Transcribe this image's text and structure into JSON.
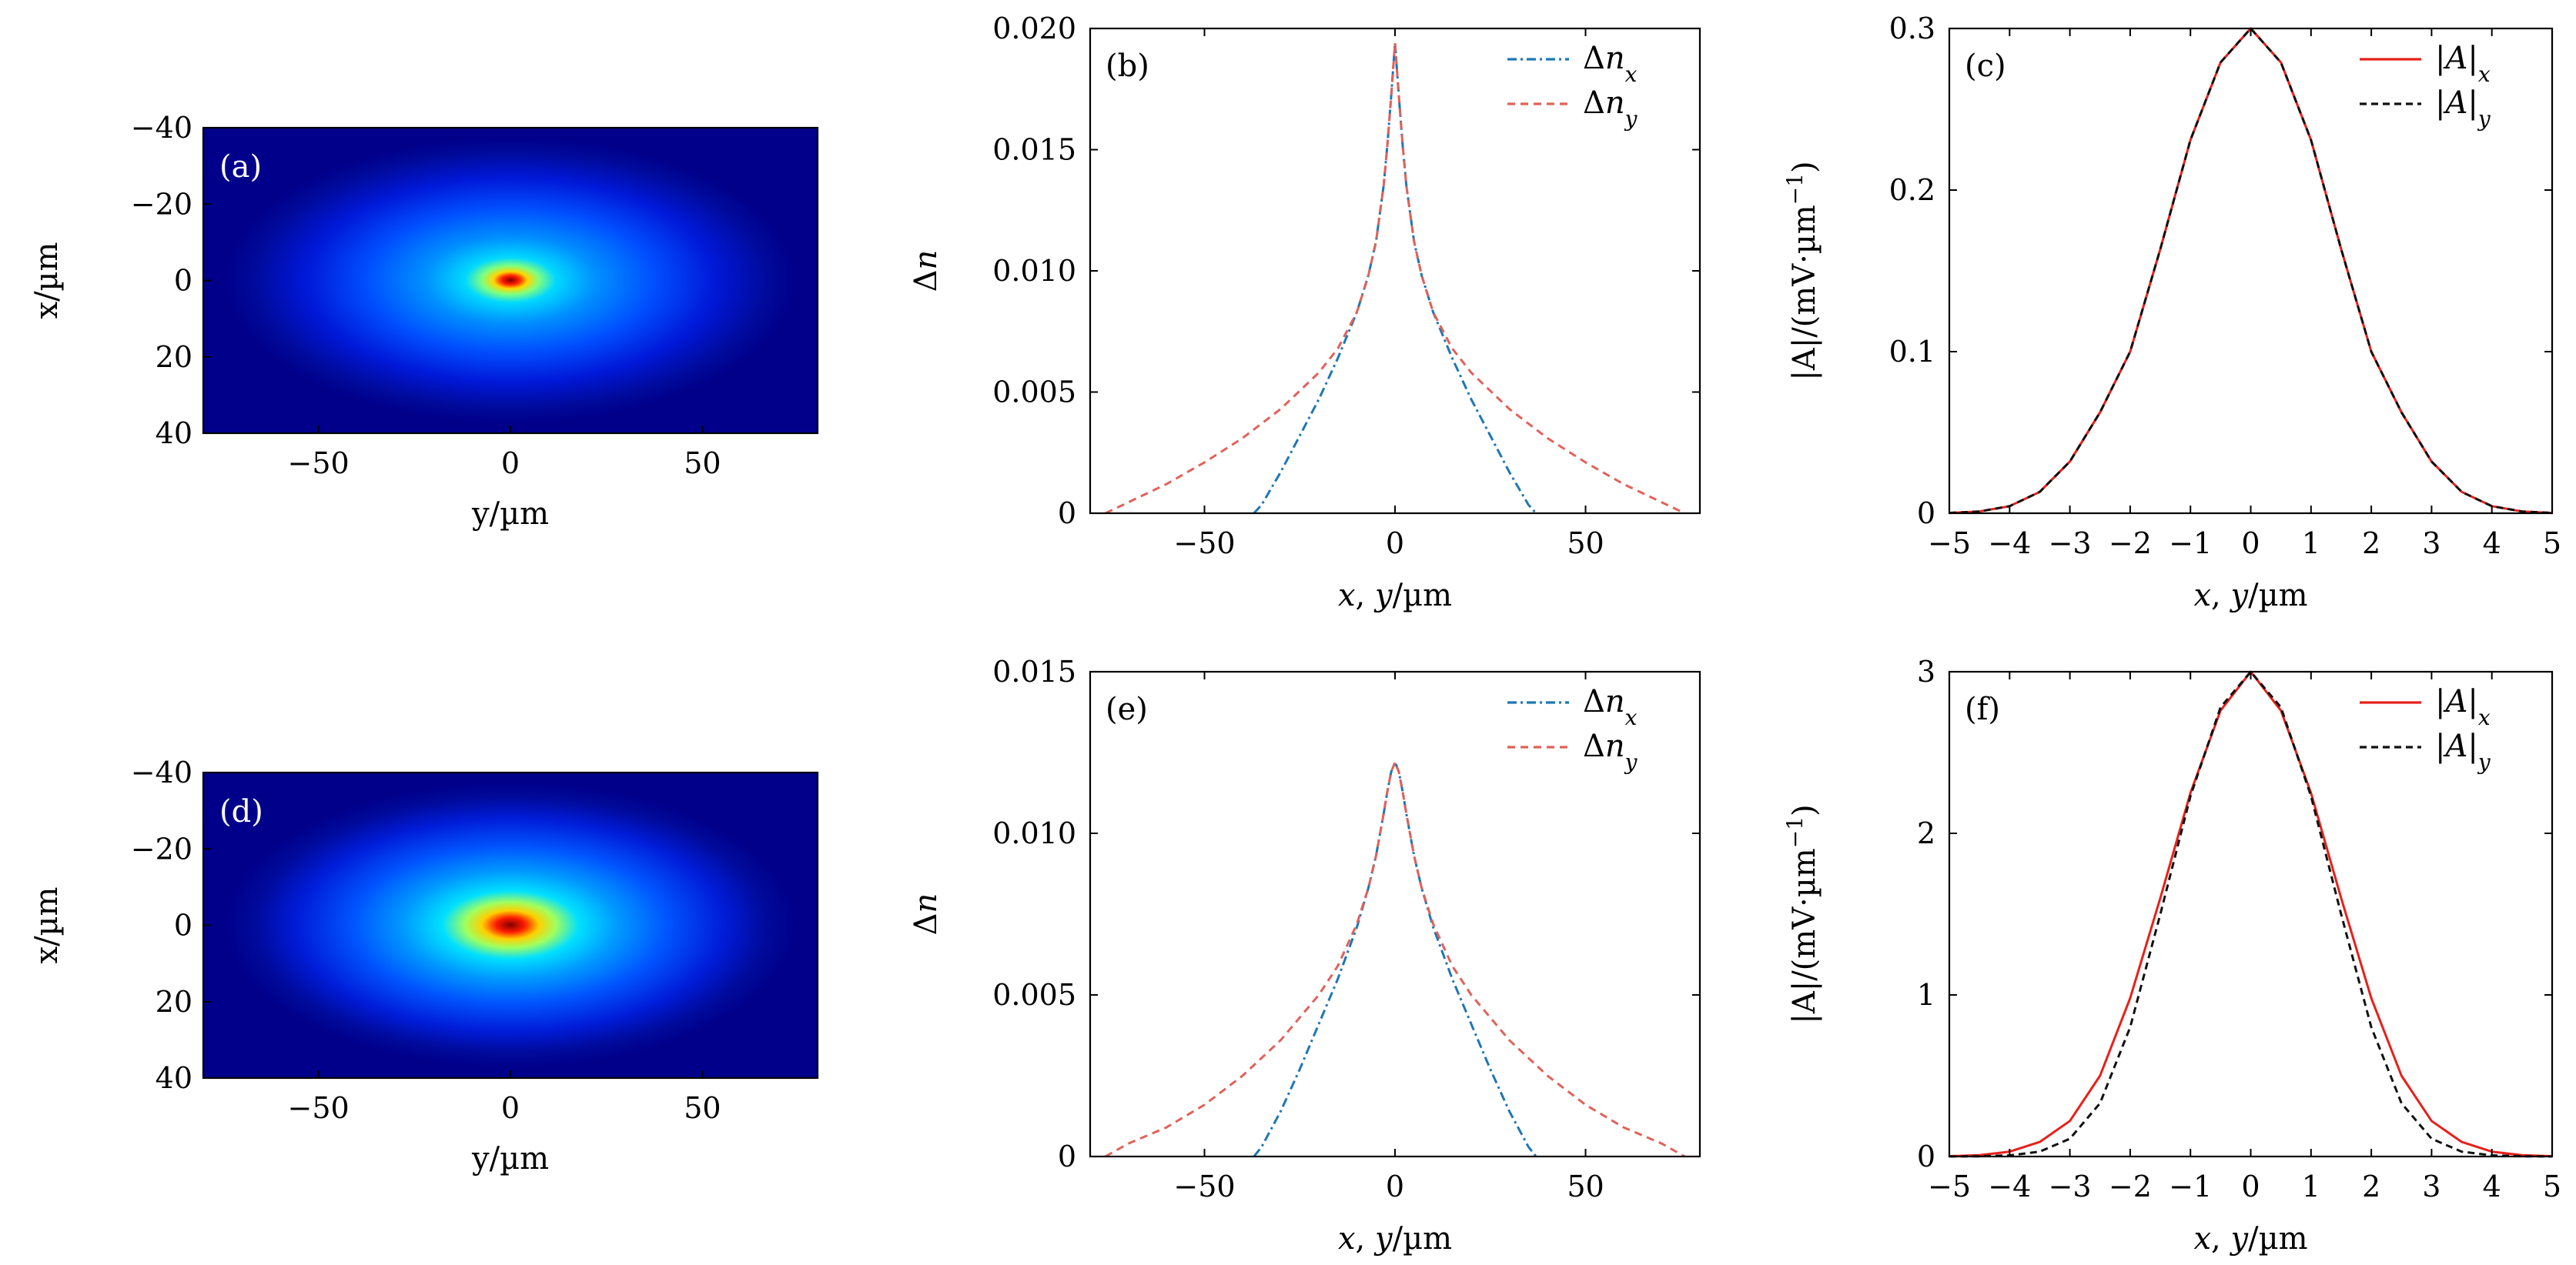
{
  "figure": {
    "panels": [
      {
        "id": "a",
        "label": "(a)"
      },
      {
        "id": "b",
        "label": "(b)"
      },
      {
        "id": "c",
        "label": "(c)"
      },
      {
        "id": "d",
        "label": "(d)"
      },
      {
        "id": "e",
        "label": "(e)"
      },
      {
        "id": "f",
        "label": "(f)"
      }
    ]
  },
  "chart_data": [
    {
      "id": "a",
      "type": "heatmap",
      "label": "(a)",
      "xlabel": "y/µm",
      "ylabel": "x/µm",
      "xlim": [
        -80,
        80
      ],
      "ylim": [
        -40,
        40
      ],
      "y_inverted": true,
      "xticks": [
        -50,
        0,
        50
      ],
      "xtick_labels": [
        "−50",
        "0",
        "50"
      ],
      "yticks": [
        -40,
        -20,
        0,
        20,
        40
      ],
      "ytick_labels": [
        "−40",
        "−20",
        "0",
        "20",
        "40"
      ],
      "colormap": "jet",
      "peak_center": [
        0,
        0
      ]
    },
    {
      "id": "b",
      "type": "line",
      "label": "(b)",
      "xlabel": "x, y/µm",
      "ylabel": "Δn",
      "xlim": [
        -80,
        80
      ],
      "ylim": [
        0,
        0.02
      ],
      "xticks": [
        -50,
        0,
        50
      ],
      "xtick_labels": [
        "−50",
        "0",
        "50"
      ],
      "yticks": [
        0,
        0.005,
        0.01,
        0.015,
        0.02
      ],
      "ytick_labels": [
        "0",
        "0.005",
        "0.010",
        "0.015",
        "0.020"
      ],
      "legend_position": "top-right",
      "series": [
        {
          "name": "Δnx",
          "name_main": "Δn",
          "name_sub": "x",
          "color": "#1f77b4",
          "dash": "12 5 3 5",
          "x": [
            -37,
            -35,
            -30,
            -25,
            -20,
            -15,
            -10,
            -7,
            -5,
            -3,
            -2,
            -1,
            0,
            1,
            2,
            3,
            5,
            7,
            10,
            15,
            20,
            25,
            30,
            35,
            37
          ],
          "y": [
            0,
            0.00035,
            0.0017,
            0.0032,
            0.0047,
            0.0064,
            0.0083,
            0.0098,
            0.0112,
            0.0135,
            0.0152,
            0.0172,
            0.0194,
            0.0172,
            0.0152,
            0.0135,
            0.0112,
            0.0098,
            0.0083,
            0.0064,
            0.0047,
            0.0032,
            0.0017,
            0.00035,
            0
          ]
        },
        {
          "name": "Δny",
          "name_main": "Δn",
          "name_sub": "y",
          "color": "#e0625a",
          "dash": "10 7",
          "x": [
            -76,
            -70,
            -60,
            -50,
            -40,
            -30,
            -20,
            -15,
            -10,
            -7,
            -5,
            -3,
            -2,
            -1,
            0,
            1,
            2,
            3,
            5,
            7,
            10,
            15,
            20,
            30,
            40,
            50,
            60,
            70,
            76
          ],
          "y": [
            0,
            0.00045,
            0.0012,
            0.0021,
            0.0031,
            0.0043,
            0.0058,
            0.0068,
            0.0083,
            0.0098,
            0.0112,
            0.0135,
            0.0152,
            0.0172,
            0.0194,
            0.0172,
            0.0152,
            0.0135,
            0.0112,
            0.0098,
            0.0083,
            0.0068,
            0.0058,
            0.0043,
            0.0031,
            0.0021,
            0.0012,
            0.00045,
            0
          ]
        }
      ]
    },
    {
      "id": "c",
      "type": "line",
      "label": "(c)",
      "xlabel": "x, y/µm",
      "ylabel": "|A|/(mV·µm−1)",
      "ylabel_main": "|A|/(mV·µm",
      "ylabel_sup": "−1",
      "ylabel_end": ")",
      "xlim": [
        -5,
        5
      ],
      "ylim": [
        0,
        0.3
      ],
      "xticks": [
        -5,
        -4,
        -3,
        -2,
        -1,
        0,
        1,
        2,
        3,
        4,
        5
      ],
      "xtick_labels": [
        "−5",
        "−4",
        "−3",
        "−2",
        "−1",
        "0",
        "1",
        "2",
        "3",
        "4",
        "5"
      ],
      "yticks": [
        0,
        0.1,
        0.2,
        0.3
      ],
      "ytick_labels": [
        "0",
        "0.1",
        "0.2",
        "0.3"
      ],
      "legend_position": "top-right",
      "series": [
        {
          "name": "|A|x",
          "name_main": "|A|",
          "name_sub": "x",
          "color": "#e8201a",
          "dash": "",
          "x": [
            -5,
            -4.5,
            -4,
            -3.5,
            -3,
            -2.5,
            -2,
            -1.5,
            -1,
            -0.5,
            0,
            0.5,
            1,
            1.5,
            2,
            2.5,
            3,
            3.5,
            4,
            4.5,
            5
          ],
          "y": [
            0.0002,
            0.0011,
            0.0044,
            0.0132,
            0.032,
            0.0625,
            0.1,
            0.1635,
            0.231,
            0.279,
            0.3,
            0.279,
            0.231,
            0.1635,
            0.1,
            0.0625,
            0.032,
            0.0132,
            0.0044,
            0.0011,
            0.0002
          ]
        },
        {
          "name": "|A|y",
          "name_main": "|A|",
          "name_sub": "y",
          "color": "#111111",
          "dash": "9 6",
          "x": [
            -5,
            -4.5,
            -4,
            -3.5,
            -3,
            -2.5,
            -2,
            -1.5,
            -1,
            -0.5,
            0,
            0.5,
            1,
            1.5,
            2,
            2.5,
            3,
            3.5,
            4,
            4.5,
            5
          ],
          "y": [
            0.0002,
            0.0011,
            0.0044,
            0.0132,
            0.032,
            0.0625,
            0.1,
            0.1635,
            0.231,
            0.279,
            0.3,
            0.279,
            0.231,
            0.1635,
            0.1,
            0.0625,
            0.032,
            0.0132,
            0.0044,
            0.0011,
            0.0002
          ]
        }
      ]
    },
    {
      "id": "d",
      "type": "heatmap",
      "label": "(d)",
      "xlabel": "y/µm",
      "ylabel": "x/µm",
      "xlim": [
        -80,
        80
      ],
      "ylim": [
        -40,
        40
      ],
      "y_inverted": true,
      "xticks": [
        -50,
        0,
        50
      ],
      "xtick_labels": [
        "−50",
        "0",
        "50"
      ],
      "yticks": [
        -40,
        -20,
        0,
        20,
        40
      ],
      "ytick_labels": [
        "−40",
        "−20",
        "0",
        "20",
        "40"
      ],
      "colormap": "jet",
      "peak_center": [
        0,
        0
      ]
    },
    {
      "id": "e",
      "type": "line",
      "label": "(e)",
      "xlabel": "x, y/µm",
      "ylabel": "Δn",
      "xlim": [
        -80,
        80
      ],
      "ylim": [
        0,
        0.015
      ],
      "xticks": [
        -50,
        0,
        50
      ],
      "xtick_labels": [
        "−50",
        "0",
        "50"
      ],
      "yticks": [
        0,
        0.005,
        0.01,
        0.015
      ],
      "ytick_labels": [
        "0",
        "0.005",
        "0.010",
        "0.015"
      ],
      "legend_position": "top-right",
      "series": [
        {
          "name": "Δnx",
          "name_main": "Δn",
          "name_sub": "x",
          "color": "#1f77b4",
          "dash": "12 5 3 5",
          "x": [
            -37,
            -35,
            -30,
            -25,
            -20,
            -15,
            -10,
            -7,
            -5,
            -3,
            -2,
            -1,
            0,
            1,
            2,
            3,
            5,
            7,
            10,
            15,
            20,
            25,
            30,
            35,
            37
          ],
          "y": [
            0,
            0.0003,
            0.0014,
            0.0027,
            0.0041,
            0.0055,
            0.0071,
            0.0083,
            0.0093,
            0.0106,
            0.0113,
            0.0119,
            0.0122,
            0.0119,
            0.0113,
            0.0106,
            0.0093,
            0.0083,
            0.0071,
            0.0055,
            0.0041,
            0.0027,
            0.0014,
            0.0003,
            0
          ]
        },
        {
          "name": "Δny",
          "name_main": "Δn",
          "name_sub": "y",
          "color": "#e0625a",
          "dash": "10 7",
          "x": [
            -76,
            -70,
            -60,
            -50,
            -40,
            -30,
            -20,
            -15,
            -10,
            -7,
            -5,
            -3,
            -2,
            -1,
            0,
            1,
            2,
            3,
            5,
            7,
            10,
            15,
            20,
            30,
            40,
            50,
            60,
            70,
            76
          ],
          "y": [
            0,
            0.0004,
            0.0009,
            0.0016,
            0.0025,
            0.0036,
            0.005,
            0.0059,
            0.0072,
            0.0083,
            0.0093,
            0.0106,
            0.0113,
            0.0119,
            0.0122,
            0.0119,
            0.0113,
            0.0106,
            0.0093,
            0.0083,
            0.0072,
            0.0059,
            0.005,
            0.0036,
            0.0025,
            0.0016,
            0.0009,
            0.0004,
            0
          ]
        }
      ]
    },
    {
      "id": "f",
      "type": "line",
      "label": "(f)",
      "xlabel": "x, y/µm",
      "ylabel": "|A|/(mV·µm−1)",
      "ylabel_main": "|A|/(mV·µm",
      "ylabel_sup": "−1",
      "ylabel_end": ")",
      "xlim": [
        -5,
        5
      ],
      "ylim": [
        0,
        3
      ],
      "xticks": [
        -5,
        -4,
        -3,
        -2,
        -1,
        0,
        1,
        2,
        3,
        4,
        5
      ],
      "xtick_labels": [
        "−5",
        "−4",
        "−3",
        "−2",
        "−1",
        "0",
        "1",
        "2",
        "3",
        "4",
        "5"
      ],
      "yticks": [
        0,
        1,
        2,
        3
      ],
      "ytick_labels": [
        "0",
        "1",
        "2",
        "3"
      ],
      "legend_position": "top-right",
      "series": [
        {
          "name": "|A|x",
          "name_main": "|A|",
          "name_sub": "x",
          "color": "#e8201a",
          "dash": "",
          "x": [
            -5,
            -4.5,
            -4,
            -3.5,
            -3,
            -2.5,
            -2,
            -1.5,
            -1,
            -0.5,
            0,
            0.5,
            1,
            1.5,
            2,
            2.5,
            3,
            3.5,
            4,
            4.5,
            5
          ],
          "y": [
            0.002,
            0.008,
            0.03,
            0.09,
            0.22,
            0.5,
            0.98,
            1.6,
            2.25,
            2.76,
            3.0,
            2.76,
            2.25,
            1.6,
            0.98,
            0.5,
            0.22,
            0.09,
            0.03,
            0.008,
            0.002
          ]
        },
        {
          "name": "|A|y",
          "name_main": "|A|",
          "name_sub": "y",
          "color": "#111111",
          "dash": "9 6",
          "x": [
            -5,
            -4.5,
            -4,
            -3.5,
            -3,
            -2.5,
            -2,
            -1.5,
            -1,
            -0.5,
            0,
            0.5,
            1,
            1.5,
            2,
            2.5,
            3,
            3.5,
            4,
            4.5,
            5
          ],
          "y": [
            0.0003,
            0.0015,
            0.007,
            0.03,
            0.11,
            0.33,
            0.8,
            1.5,
            2.23,
            2.78,
            3.0,
            2.78,
            2.23,
            1.5,
            0.8,
            0.33,
            0.11,
            0.03,
            0.007,
            0.0015,
            0.0003
          ]
        }
      ]
    }
  ]
}
